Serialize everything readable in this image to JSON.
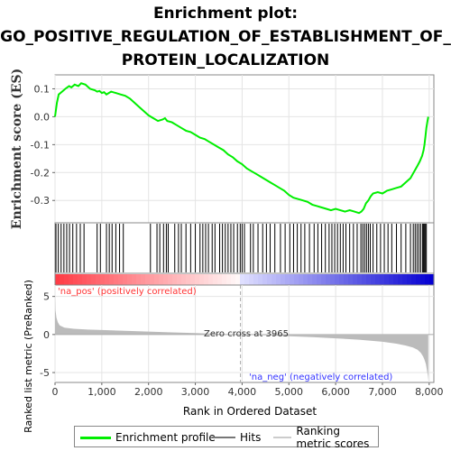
{
  "title": {
    "line1": "Enrichment plot:",
    "line2": "GO_POSITIVE_REGULATION_OF_ESTABLISHMENT_OF_",
    "line3": "PROTEIN_LOCALIZATION"
  },
  "colors": {
    "enrichment_line": "#00ee00",
    "hits": "#000000",
    "ranking_fill": "#bbbbbb",
    "pos_label": "#ff3333",
    "neg_label": "#3333ff",
    "zero_line": "#aaaaaa"
  },
  "chart_data": [
    {
      "type": "line",
      "name": "enrichment-profile",
      "ylabel": "Enrichment score (ES)",
      "yticks": [
        "0.1",
        "0.0",
        "-0.1",
        "-0.2",
        "-0.3"
      ],
      "ylim": [
        -0.38,
        0.15
      ],
      "xlim": [
        0,
        8100
      ],
      "grid": true,
      "x": [
        0,
        40,
        80,
        150,
        220,
        300,
        350,
        420,
        500,
        560,
        650,
        750,
        850,
        900,
        950,
        1000,
        1050,
        1100,
        1150,
        1200,
        1300,
        1400,
        1500,
        1600,
        1700,
        1800,
        1900,
        2000,
        2100,
        2200,
        2300,
        2350,
        2400,
        2500,
        2600,
        2700,
        2800,
        2900,
        3000,
        3100,
        3200,
        3300,
        3400,
        3500,
        3600,
        3700,
        3800,
        3900,
        4000,
        4100,
        4200,
        4300,
        4400,
        4500,
        4600,
        4700,
        4800,
        4900,
        5000,
        5100,
        5200,
        5300,
        5400,
        5500,
        5600,
        5700,
        5800,
        5900,
        6000,
        6100,
        6200,
        6300,
        6400,
        6500,
        6550,
        6600,
        6650,
        6700,
        6750,
        6800,
        6900,
        7000,
        7100,
        7200,
        7300,
        7400,
        7500,
        7600,
        7650,
        7700,
        7750,
        7800,
        7850,
        7880,
        7900,
        7920,
        7940,
        7960,
        7980
      ],
      "y": [
        0.0,
        0.05,
        0.08,
        0.09,
        0.1,
        0.11,
        0.105,
        0.115,
        0.11,
        0.12,
        0.115,
        0.1,
        0.095,
        0.09,
        0.092,
        0.085,
        0.088,
        0.08,
        0.085,
        0.09,
        0.085,
        0.08,
        0.075,
        0.065,
        0.05,
        0.035,
        0.02,
        0.005,
        -0.005,
        -0.015,
        -0.01,
        -0.005,
        -0.015,
        -0.02,
        -0.03,
        -0.04,
        -0.05,
        -0.055,
        -0.065,
        -0.075,
        -0.08,
        -0.09,
        -0.1,
        -0.11,
        -0.12,
        -0.135,
        -0.145,
        -0.16,
        -0.17,
        -0.185,
        -0.195,
        -0.205,
        -0.215,
        -0.225,
        -0.235,
        -0.245,
        -0.255,
        -0.265,
        -0.28,
        -0.29,
        -0.295,
        -0.3,
        -0.305,
        -0.315,
        -0.32,
        -0.325,
        -0.33,
        -0.335,
        -0.33,
        -0.335,
        -0.34,
        -0.335,
        -0.34,
        -0.345,
        -0.34,
        -0.33,
        -0.31,
        -0.3,
        -0.285,
        -0.275,
        -0.27,
        -0.275,
        -0.265,
        -0.26,
        -0.255,
        -0.25,
        -0.235,
        -0.22,
        -0.205,
        -0.19,
        -0.175,
        -0.16,
        -0.14,
        -0.12,
        -0.1,
        -0.07,
        -0.04,
        -0.02,
        0.0
      ]
    },
    {
      "type": "hits",
      "name": "hits",
      "positions": [
        20,
        70,
        130,
        190,
        250,
        310,
        380,
        460,
        540,
        620,
        900,
        970,
        1100,
        1160,
        1220,
        1300,
        1380,
        1460,
        2040,
        2180,
        2240,
        2320,
        2380,
        2420,
        2560,
        2640,
        2700,
        2800,
        2900,
        3000,
        3100,
        3160,
        3220,
        3280,
        3360,
        3420,
        3520,
        3580,
        3640,
        3700,
        3760,
        3820,
        3900,
        3960,
        4000,
        4050,
        4180,
        4240,
        4340,
        4440,
        4520,
        4600,
        4700,
        4820,
        4920,
        5020,
        5100,
        5180,
        5260,
        5340,
        5440,
        5540,
        5620,
        5700,
        5780,
        5860,
        5920,
        5980,
        6040,
        6100,
        6160,
        6220,
        6300,
        6380,
        6460,
        6540,
        6580,
        6620,
        6660,
        6700,
        6740,
        6800,
        6880,
        6960,
        7040,
        7120,
        7200,
        7300,
        7400,
        7500,
        7600,
        7660,
        7700,
        7740,
        7780,
        7820,
        7860,
        7880,
        7900,
        7920,
        7940
      ]
    },
    {
      "type": "area",
      "name": "ranking-metric",
      "ylabel": "Ranked list metric (PreRanked)",
      "xlabel": "Rank in Ordered Dataset",
      "yticks": [
        "5",
        "0",
        "-5"
      ],
      "ylim": [
        -6.3,
        6.5
      ],
      "xticks": [
        "0",
        "1,000",
        "2,000",
        "3,000",
        "4,000",
        "5,000",
        "6,000",
        "7,000",
        "8,000"
      ],
      "xtick_values": [
        0,
        1000,
        2000,
        3000,
        4000,
        5000,
        6000,
        7000,
        8000
      ],
      "x": [
        0,
        10,
        30,
        60,
        100,
        200,
        400,
        700,
        1000,
        1500,
        2000,
        2500,
        3000,
        3500,
        3965,
        4500,
        5000,
        5500,
        6000,
        6500,
        7000,
        7300,
        7500,
        7650,
        7750,
        7820,
        7870,
        7900,
        7930,
        7950,
        7970,
        7980
      ],
      "values": [
        5.2,
        3.2,
        2.2,
        1.6,
        1.2,
        0.9,
        0.75,
        0.65,
        0.58,
        0.48,
        0.38,
        0.28,
        0.18,
        0.08,
        0.0,
        -0.1,
        -0.22,
        -0.35,
        -0.5,
        -0.68,
        -0.95,
        -1.2,
        -1.45,
        -1.7,
        -2.0,
        -2.4,
        -2.9,
        -3.3,
        -3.9,
        -4.6,
        -5.4,
        -6.1
      ],
      "zero_cross_label": "Zero cross at 3965",
      "zero_cross": 3965,
      "pos_label": "'na_pos' (positively correlated)",
      "neg_label": "'na_neg' (negatively correlated)"
    }
  ],
  "legend": {
    "items": [
      {
        "label": "Enrichment profile"
      },
      {
        "label": "Hits"
      },
      {
        "label": "Ranking metric scores"
      }
    ]
  }
}
